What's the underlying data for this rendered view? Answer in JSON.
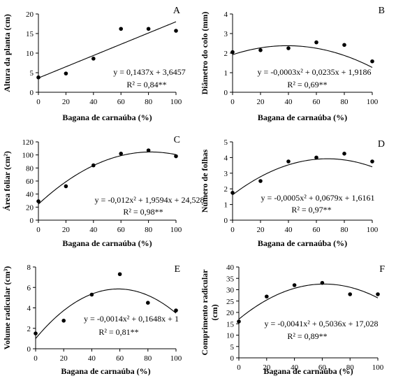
{
  "chart_data": [
    {
      "panel": "A",
      "type": "scatter",
      "fit": "linear",
      "xlabel": "Bagana de carnaúba (%)",
      "ylabel": "Altura da planta (cm)",
      "x": [
        0,
        20,
        40,
        60,
        80,
        100
      ],
      "y": [
        3.8,
        4.8,
        8.6,
        16.2,
        16.2,
        15.7
      ],
      "coef": [
        3.6457,
        0.1437,
        0
      ],
      "xlim": [
        0,
        100
      ],
      "ylim": [
        0,
        20
      ],
      "xticks": [
        0,
        20,
        40,
        60,
        80,
        100
      ],
      "yticks": [
        0,
        5,
        10,
        15,
        20
      ],
      "equation": "y = 0,1437x + 3,6457",
      "r2": "R² = 0,84**"
    },
    {
      "panel": "B",
      "type": "scatter",
      "fit": "quadratic",
      "xlabel": "Bagana de carnaúba (%)",
      "ylabel": "Diâmetro do colo (mm)",
      "x": [
        0,
        20,
        40,
        60,
        80,
        100
      ],
      "y": [
        2.05,
        2.15,
        2.25,
        2.55,
        2.42,
        1.58
      ],
      "coef": [
        1.9186,
        0.0235,
        -0.0003
      ],
      "xlim": [
        0,
        100
      ],
      "ylim": [
        0,
        4
      ],
      "xticks": [
        0,
        20,
        40,
        60,
        80,
        100
      ],
      "yticks": [
        0,
        1,
        2,
        3,
        4
      ],
      "equation": "y = -0,0003x² + 0,0235x + 1,9186",
      "r2": "R² = 0,69**"
    },
    {
      "panel": "C",
      "type": "scatter",
      "fit": "quadratic",
      "xlabel": "Bagana de carnaúba (%)",
      "ylabel": "Área foliar (cm²)",
      "x": [
        0,
        20,
        40,
        60,
        80,
        100
      ],
      "y": [
        29,
        52,
        84,
        102,
        107,
        98
      ],
      "coef": [
        24.528,
        1.9594,
        -0.012
      ],
      "xlim": [
        0,
        100
      ],
      "ylim": [
        0,
        120
      ],
      "xticks": [
        0,
        20,
        40,
        60,
        80,
        100
      ],
      "yticks": [
        0,
        20,
        40,
        60,
        80,
        100,
        120
      ],
      "equation": "y = -0,012x² + 1,9594x + 24,528",
      "r2": "R² = 0,98**"
    },
    {
      "panel": "D",
      "type": "scatter",
      "fit": "quadratic",
      "xlabel": "Bagana de carnaúba (%)",
      "ylabel": "Número de folhas",
      "x": [
        0,
        20,
        40,
        60,
        80,
        100
      ],
      "y": [
        1.75,
        2.5,
        3.75,
        4.0,
        4.25,
        3.75
      ],
      "coef": [
        1.6161,
        0.0679,
        -0.0005
      ],
      "xlim": [
        0,
        100
      ],
      "ylim": [
        0,
        5
      ],
      "xticks": [
        0,
        20,
        40,
        60,
        80,
        100
      ],
      "yticks": [
        0,
        1,
        2,
        3,
        4,
        5
      ],
      "equation": "y = -0,0005x² + 0,0679x + 1,6161",
      "r2": "R² = 0,97**"
    },
    {
      "panel": "E",
      "type": "scatter",
      "fit": "quadratic",
      "xlabel": "Bagana de carnaúba (%)",
      "ylabel": "Volume radicular (cm³)",
      "x": [
        0,
        20,
        40,
        60,
        80,
        100
      ],
      "y": [
        1.5,
        2.75,
        5.3,
        7.3,
        4.5,
        3.75
      ],
      "coef": [
        1,
        0.1648,
        -0.0014
      ],
      "xlim": [
        0,
        100
      ],
      "ylim": [
        0,
        8
      ],
      "xticks": [
        0,
        20,
        40,
        60,
        80,
        100
      ],
      "yticks": [
        0,
        2,
        4,
        6,
        8
      ],
      "equation": "y = -0,0014x² + 0,1648x + 1",
      "r2": "R² = 0,81**"
    },
    {
      "panel": "F",
      "type": "scatter",
      "fit": "quadratic",
      "xlabel": "Bagana de carnaúba (%)",
      "ylabel": [
        "Comprimento radicular",
        "(cm)"
      ],
      "x": [
        0,
        20,
        40,
        60,
        80,
        100
      ],
      "y": [
        16,
        27,
        32,
        33,
        28,
        28
      ],
      "coef": [
        17.028,
        0.5036,
        -0.0041
      ],
      "xlim": [
        0,
        100
      ],
      "ylim": [
        0,
        40
      ],
      "xticks": [
        0,
        20,
        40,
        60,
        80,
        100
      ],
      "yticks": [
        0,
        5,
        10,
        15,
        20,
        25,
        30,
        35,
        40
      ],
      "equation": "y = -0,0041x² + 0,5036x + 17,028",
      "r2": "R² = 0,89**"
    }
  ]
}
